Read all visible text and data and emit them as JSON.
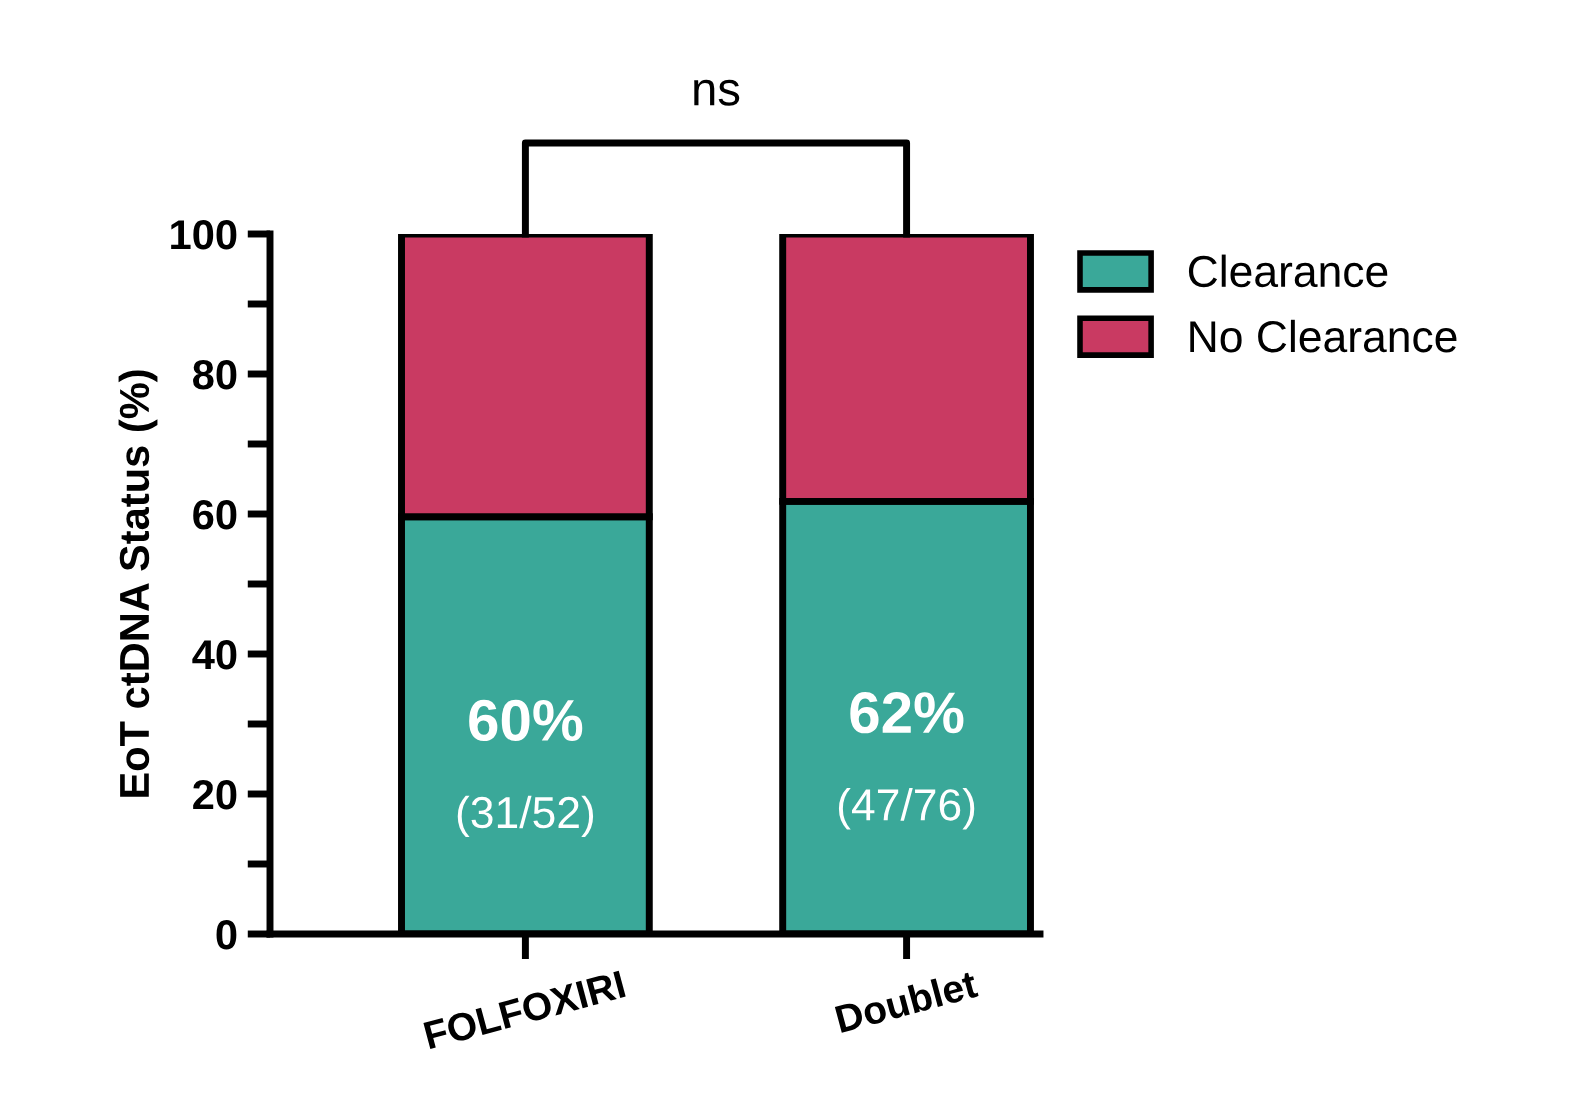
{
  "chart_data": {
    "type": "bar",
    "stacked": true,
    "ylabel": "EoT ctDNA Status (%)",
    "categories": [
      "FOLFOXIRI",
      "Doublet"
    ],
    "series": [
      {
        "name": "Clearance",
        "color": "#3aa899",
        "values": [
          59.6,
          61.8
        ],
        "value_labels": [
          "60%\n(31/52)",
          "62%\n(47/76)"
        ]
      },
      {
        "name": "No Clearance",
        "color": "#c93a62",
        "values": [
          40.4,
          38.2
        ]
      }
    ],
    "ylim": [
      0,
      100
    ],
    "yticks": [
      0,
      {
        "value": 10,
        "label": null
      },
      20,
      {
        "value": 30,
        "label": null
      },
      40,
      {
        "value": 50,
        "label": null
      },
      60,
      {
        "value": 70,
        "label": null
      },
      80,
      {
        "value": 90,
        "label": null
      },
      100
    ],
    "annotations": [
      "ns"
    ],
    "legend": "top right",
    "grid": false
  }
}
